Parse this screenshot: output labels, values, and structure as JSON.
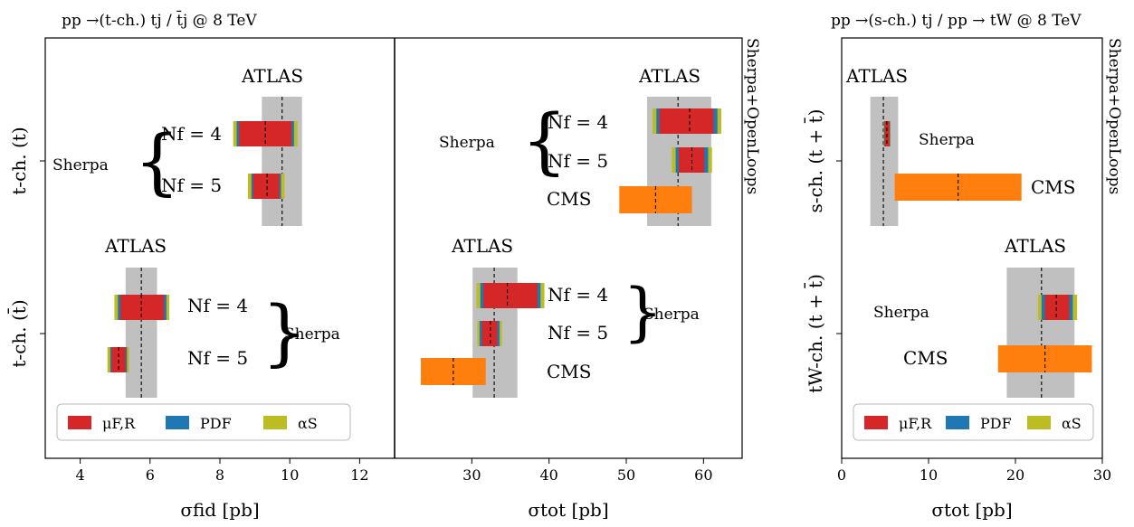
{
  "colors": {
    "mu": "#d62728",
    "pdf": "#1f77b4",
    "alpha": "#bcbd22",
    "band": "#c0c0c0",
    "cms": "#ff7f0e",
    "frame": "#000000"
  },
  "titles": {
    "left": "pp →(t-ch.) tj / t̄j @ 8 TeV",
    "right": "pp →(s-ch.) tj / pp → tW @ 8 TeV"
  },
  "side_labels": {
    "generator": "Sherpa+OpenLoops"
  },
  "legend": {
    "entries": [
      {
        "label": "μF,R",
        "color_key": "mu"
      },
      {
        "label": "PDF",
        "color_key": "pdf"
      },
      {
        "label": "αS",
        "color_key": "alpha"
      }
    ]
  },
  "text_labels": {
    "atlas": "ATLAS",
    "cms": "CMS",
    "sherpa": "Sherpa",
    "nf4": "Nf = 4",
    "nf5": "Nf = 5"
  },
  "chart_data": [
    {
      "type": "bar",
      "panel": "fiducial",
      "xlabel": "σfid [pb]",
      "xlim": [
        3,
        13
      ],
      "xticks": [
        4,
        6,
        8,
        10,
        12
      ],
      "categories": [
        "t-ch. (t)",
        "t-ch. (t̄)"
      ],
      "atlas": [
        {
          "category": "t-ch. (t)",
          "center": 9.78,
          "band": [
            9.2,
            10.35
          ]
        },
        {
          "category": "t-ch. (t̄)",
          "center": 5.75,
          "band": [
            5.3,
            6.2
          ]
        }
      ],
      "predictions": [
        {
          "category": "t-ch. (t)",
          "label": "Nf = 4",
          "center": 9.3,
          "mu": [
            8.55,
            10.05
          ],
          "pdf": [
            8.48,
            10.12
          ],
          "alpha": [
            8.38,
            10.22
          ]
        },
        {
          "category": "t-ch. (t)",
          "label": "Nf = 5",
          "center": 9.35,
          "mu": [
            8.95,
            9.7
          ],
          "pdf": [
            8.9,
            9.75
          ],
          "alpha": [
            8.8,
            9.85
          ]
        },
        {
          "category": "t-ch. (t̄)",
          "label": "Nf = 4",
          "center": 5.75,
          "mu": [
            5.15,
            6.4
          ],
          "pdf": [
            5.08,
            6.47
          ],
          "alpha": [
            4.98,
            6.55
          ]
        },
        {
          "category": "t-ch. (t̄)",
          "label": "Nf = 5",
          "center": 5.1,
          "mu": [
            4.9,
            5.3
          ],
          "pdf": [
            4.86,
            5.34
          ],
          "alpha": [
            4.78,
            5.4
          ]
        }
      ],
      "cms": []
    },
    {
      "type": "bar",
      "panel": "total-tch",
      "xlabel": "σtot [pb]",
      "xlim": [
        20,
        65
      ],
      "xticks": [
        30,
        40,
        50,
        60
      ],
      "categories": [
        "t-ch. (t)",
        "t-ch. (t̄)"
      ],
      "atlas": [
        {
          "category": "t-ch. (t)",
          "center": 56.7,
          "band": [
            52.7,
            61
          ]
        },
        {
          "category": "t-ch. (t̄)",
          "center": 32.9,
          "band": [
            30.1,
            35.9
          ]
        }
      ],
      "predictions": [
        {
          "category": "t-ch. (t)",
          "label": "Nf = 4",
          "center": 58.2,
          "mu": [
            54.3,
            61.3
          ],
          "pdf": [
            53.9,
            61.8
          ],
          "alpha": [
            53.4,
            62.3
          ]
        },
        {
          "category": "t-ch. (t)",
          "label": "Nf = 5",
          "center": 58.5,
          "mu": [
            56.8,
            60.1
          ],
          "pdf": [
            56.4,
            60.6
          ],
          "alpha": [
            55.9,
            61.1
          ]
        },
        {
          "category": "t-ch. (t̄)",
          "label": "Nf = 4",
          "center": 34.6,
          "mu": [
            31.5,
            38.5
          ],
          "pdf": [
            31.1,
            38.9
          ],
          "alpha": [
            30.6,
            39.4
          ]
        },
        {
          "category": "t-ch. (t̄)",
          "label": "Nf = 5",
          "center": 32.4,
          "mu": [
            31.3,
            33.3
          ],
          "pdf": [
            31,
            33.6
          ],
          "alpha": [
            30.7,
            33.9
          ]
        }
      ],
      "cms": [
        {
          "category": "t-ch. (t)",
          "center": 53.8,
          "range": [
            49.1,
            58.5
          ]
        },
        {
          "category": "t-ch. (t̄)",
          "center": 27.6,
          "range": [
            23.4,
            31.8
          ]
        }
      ]
    },
    {
      "type": "bar",
      "panel": "total-s-tW",
      "xlabel": "σtot [pb]",
      "xlim": [
        0,
        30
      ],
      "xticks": [
        0,
        10,
        20,
        30
      ],
      "categories": [
        "s-ch. (t + t̄)",
        "tW-ch. (t + t̄)"
      ],
      "atlas": [
        {
          "category": "s-ch. (t + t̄)",
          "center": 4.8,
          "band": [
            3.3,
            6.5
          ]
        },
        {
          "category": "tW-ch. (t + t̄)",
          "center": 23,
          "band": [
            19,
            26.8
          ]
        }
      ],
      "predictions": [
        {
          "category": "s-ch. (t + t̄)",
          "label": "",
          "center": 5.2,
          "mu": [
            4.95,
            5.5
          ],
          "pdf": [
            4.88,
            5.57
          ],
          "alpha": [
            4.82,
            5.63
          ]
        },
        {
          "category": "tW-ch. (t + t̄)",
          "label": "",
          "center": 24.7,
          "mu": [
            23.4,
            26.2
          ],
          "pdf": [
            23,
            26.6
          ],
          "alpha": [
            22.6,
            27.1
          ]
        }
      ],
      "cms": [
        {
          "category": "s-ch. (t + t̄)",
          "center": 13.4,
          "range": [
            6.1,
            20.7
          ]
        },
        {
          "category": "tW-ch. (t + t̄)",
          "center": 23.4,
          "range": [
            18,
            28.8
          ]
        }
      ]
    }
  ]
}
